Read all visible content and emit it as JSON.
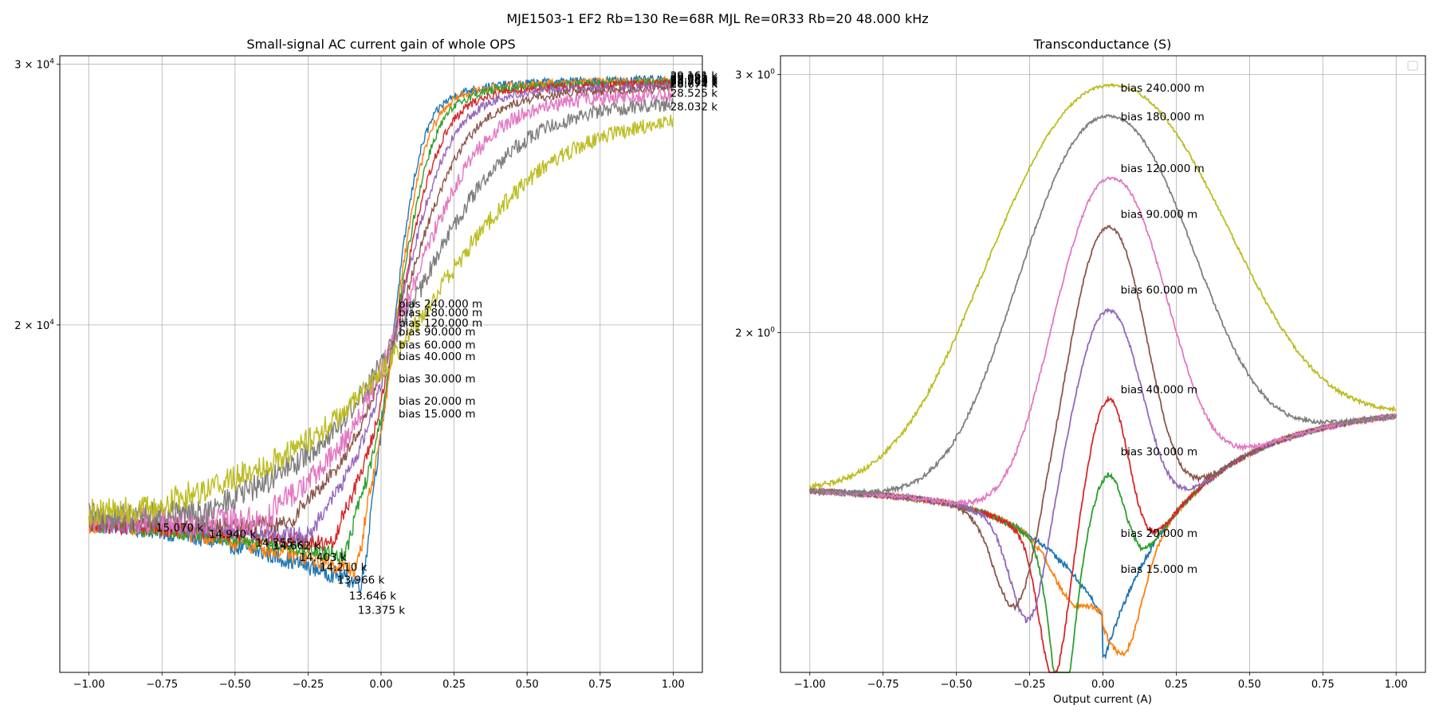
{
  "figure": {
    "suptitle": "MJE1503-1 EF2 Rb=130 Re=68R MJL Re=0R33 Rb=20 48.000 kHz"
  },
  "colors": {
    "c0": "#1f77b4",
    "c1": "#ff7f0e",
    "c2": "#2ca02c",
    "c3": "#d62728",
    "c4": "#9467bd",
    "c5": "#8c564b",
    "c6": "#e377c2",
    "c7": "#7f7f7f",
    "c8": "#bcbd22",
    "grid": "#b0b0b0"
  },
  "chart_data": [
    {
      "type": "line",
      "title": "Small-signal AC current gain of whole OPS",
      "xlabel": "",
      "ylabel": "",
      "xlim": [
        -1.1,
        1.1
      ],
      "ylim": [
        11650,
        30400
      ],
      "yscale": "log",
      "grid": true,
      "xticks": [
        -1.0,
        -0.75,
        -0.5,
        -0.25,
        0.0,
        0.25,
        0.5,
        0.75,
        1.0
      ],
      "xtick_labels": [
        "−1.00",
        "−0.75",
        "−0.50",
        "−0.25",
        "0.00",
        "0.25",
        "0.50",
        "0.75",
        "1.00"
      ],
      "yticks": [
        20000,
        30000
      ],
      "ytick_labels": [
        {
          "base": "2 × 10",
          "exp": "4"
        },
        {
          "base": "3 × 10",
          "exp": "4"
        }
      ],
      "series": [
        {
          "bias": 0.015,
          "color_key": "c0",
          "lo": 13375,
          "xmin": -0.07,
          "plateau": 14650,
          "hi": 29300,
          "xc": 0.06,
          "w": 0.13
        },
        {
          "bias": 0.02,
          "color_key": "c1",
          "lo": 13646,
          "xmin": -0.09,
          "plateau": 14650,
          "hi": 29250,
          "xc": 0.07,
          "w": 0.14
        },
        {
          "bias": 0.03,
          "color_key": "c2",
          "lo": 13966,
          "xmin": -0.13,
          "plateau": 14650,
          "hi": 29200,
          "xc": 0.08,
          "w": 0.16
        },
        {
          "bias": 0.04,
          "color_key": "c3",
          "lo": 14210,
          "xmin": -0.17,
          "plateau": 14650,
          "hi": 29150,
          "xc": 0.09,
          "w": 0.19
        },
        {
          "bias": 0.06,
          "color_key": "c4",
          "lo": 14403,
          "xmin": -0.25,
          "plateau": 14650,
          "hi": 29100,
          "xc": 0.1,
          "w": 0.23
        },
        {
          "bias": 0.09,
          "color_key": "c5",
          "lo": 14662,
          "xmin": -0.32,
          "plateau": 14700,
          "hi": 29000,
          "xc": 0.12,
          "w": 0.28
        },
        {
          "bias": 0.12,
          "color_key": "c6",
          "lo": 14755,
          "xmin": -0.4,
          "plateau": 14750,
          "hi": 28800,
          "xc": 0.14,
          "w": 0.34
        },
        {
          "bias": 0.18,
          "color_key": "c7",
          "lo": 14940,
          "xmin": -0.58,
          "plateau": 14850,
          "hi": 28525,
          "xc": 0.18,
          "w": 0.45
        },
        {
          "bias": 0.24,
          "color_key": "c8",
          "lo": 15070,
          "xmin": -0.75,
          "plateau": 14950,
          "hi": 28032,
          "xc": 0.25,
          "w": 0.58
        }
      ],
      "bias_labels": [
        {
          "text": "bias 240.000 m",
          "x": 0.06,
          "y": 20680
        },
        {
          "text": "bias 180.000 m",
          "x": 0.06,
          "y": 20400
        },
        {
          "text": "bias 120.000 m",
          "x": 0.06,
          "y": 20070
        },
        {
          "text": "bias 90.000 m",
          "x": 0.06,
          "y": 19800
        },
        {
          "text": "bias 60.000 m",
          "x": 0.06,
          "y": 19400
        },
        {
          "text": "bias 40.000 m",
          "x": 0.06,
          "y": 19050
        },
        {
          "text": "bias 30.000 m",
          "x": 0.06,
          "y": 18400
        },
        {
          "text": "bias 20.000 m",
          "x": 0.06,
          "y": 17780
        },
        {
          "text": "bias 15.000 m",
          "x": 0.06,
          "y": 17430
        }
      ],
      "min_labels": [
        {
          "text": "15.070 k",
          "x": -0.77,
          "y": 14600
        },
        {
          "text": "14.940 k",
          "x": -0.59,
          "y": 14450
        },
        {
          "text": "14.755 k",
          "x": -0.43,
          "y": 14260
        },
        {
          "text": "14.662 k",
          "x": -0.37,
          "y": 14200
        },
        {
          "text": "14.403 k",
          "x": -0.28,
          "y": 13940
        },
        {
          "text": "14.210 k",
          "x": -0.21,
          "y": 13730
        },
        {
          "text": "13.966 k",
          "x": -0.15,
          "y": 13460
        },
        {
          "text": "13.646 k",
          "x": -0.11,
          "y": 13130
        },
        {
          "text": "13.375 k",
          "x": -0.08,
          "y": 12840
        }
      ],
      "max_labels": [
        {
          "text": "29.161 k",
          "x": 0.99,
          "y": 29490
        },
        {
          "text": "29.095 k",
          "x": 0.99,
          "y": 29420
        },
        {
          "text": "29.038 k",
          "x": 0.99,
          "y": 29350
        },
        {
          "text": "28.964 k",
          "x": 0.99,
          "y": 29290
        },
        {
          "text": "28.866 k",
          "x": 0.99,
          "y": 29230
        },
        {
          "text": "28.791 k",
          "x": 0.99,
          "y": 29170
        },
        {
          "text": "28.674 k",
          "x": 0.99,
          "y": 29110
        },
        {
          "text": "28.525 k",
          "x": 0.99,
          "y": 28700
        },
        {
          "text": "28.032 k",
          "x": 0.99,
          "y": 28100
        }
      ]
    },
    {
      "type": "line",
      "title": "Transconductance (S)",
      "xlabel": "Output current (A)",
      "ylabel": "",
      "xlim": [
        -1.1,
        1.1
      ],
      "ylim": [
        1.173,
        3.09
      ],
      "yscale": "log",
      "grid": true,
      "legend": "top-right (empty)",
      "xticks": [
        -1.0,
        -0.75,
        -0.5,
        -0.25,
        0.0,
        0.25,
        0.5,
        0.75,
        1.0
      ],
      "xtick_labels": [
        "−1.00",
        "−0.75",
        "−0.50",
        "−0.25",
        "0.00",
        "0.25",
        "0.50",
        "0.75",
        "1.00"
      ],
      "yticks": [
        2.0,
        3.0
      ],
      "ytick_labels": [
        {
          "base": "2 × 10",
          "exp": "0"
        },
        {
          "base": "3 × 10",
          "exp": "0"
        }
      ],
      "series": [
        {
          "bias": 0.015,
          "color_key": "c0",
          "peak": 1.2,
          "pc": -0.035,
          "pw": 0.095,
          "dip": 0,
          "dc": 0,
          "dw": 0.1
        },
        {
          "bias": 0.02,
          "color_key": "c1",
          "peak": 1.3,
          "pc": -0.065,
          "pw": 0.085,
          "dip": 0.12,
          "dc": 0.08,
          "dw": 0.08
        },
        {
          "bias": 0.03,
          "color_key": "c2",
          "peak": 1.6,
          "pc": 0.02,
          "pw": 0.07,
          "dip": 0.3,
          "dc": -0.14,
          "dw": 0.06
        },
        {
          "bias": 0.04,
          "color_key": "c3",
          "peak": 1.8,
          "pc": 0.02,
          "pw": 0.08,
          "dip": 0.26,
          "dc": -0.17,
          "dw": 0.07
        },
        {
          "bias": 0.06,
          "color_key": "c4",
          "peak": 2.07,
          "pc": 0.02,
          "pw": 0.13,
          "dip": 0.22,
          "dc": -0.25,
          "dw": 0.09
        },
        {
          "bias": 0.09,
          "color_key": "c5",
          "peak": 2.36,
          "pc": 0.02,
          "pw": 0.14,
          "dip": 0.2,
          "dc": -0.3,
          "dw": 0.1
        },
        {
          "bias": 0.12,
          "color_key": "c6",
          "peak": 2.55,
          "pc": 0.03,
          "pw": 0.2,
          "dip": 0,
          "dc": 0,
          "dw": 0.1
        },
        {
          "bias": 0.18,
          "color_key": "c7",
          "peak": 2.81,
          "pc": 0.02,
          "pw": 0.3,
          "dip": 0,
          "dc": 0,
          "dw": 0.1
        },
        {
          "bias": 0.24,
          "color_key": "c8",
          "peak": 2.95,
          "pc": 0.03,
          "pw": 0.4,
          "dip": 0,
          "dc": 0,
          "dw": 0.1
        }
      ],
      "bias_labels": [
        {
          "text": "bias 240.000 m",
          "x": 0.06,
          "y": 2.94
        },
        {
          "text": "bias 180.000 m",
          "x": 0.06,
          "y": 2.81
        },
        {
          "text": "bias 120.000 m",
          "x": 0.06,
          "y": 2.59
        },
        {
          "text": "bias 90.000 m",
          "x": 0.06,
          "y": 2.41
        },
        {
          "text": "bias 60.000 m",
          "x": 0.06,
          "y": 2.14
        },
        {
          "text": "bias 40.000 m",
          "x": 0.06,
          "y": 1.83
        },
        {
          "text": "bias 30.000 m",
          "x": 0.06,
          "y": 1.66
        },
        {
          "text": "bias 20.000 m",
          "x": 0.06,
          "y": 1.46
        },
        {
          "text": "bias 15.000 m",
          "x": 0.06,
          "y": 1.38
        }
      ]
    }
  ]
}
